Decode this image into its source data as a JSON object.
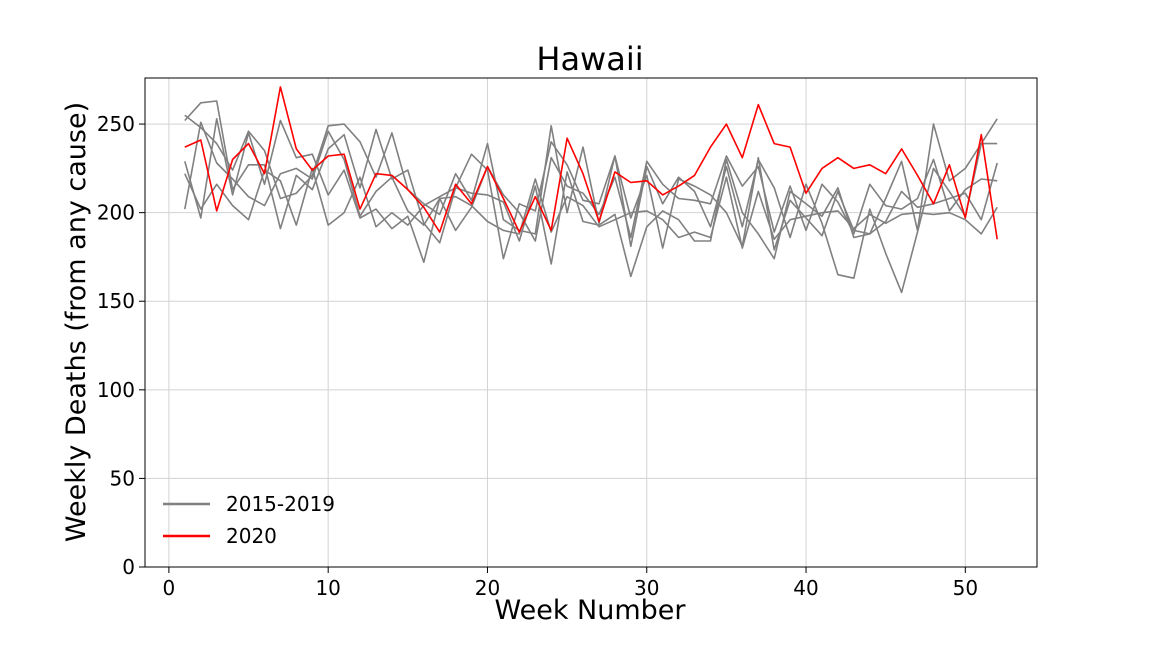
{
  "chart_data": {
    "type": "line",
    "title": "Hawaii",
    "xlabel": "Week Number",
    "ylabel": "Weekly Deaths (from any cause)",
    "xlim": [
      -1.5,
      54.5
    ],
    "ylim": [
      0,
      276
    ],
    "xticks": [
      0,
      10,
      20,
      30,
      40,
      50
    ],
    "yticks": [
      0,
      50,
      100,
      150,
      200,
      250
    ],
    "grid": true,
    "legend_position": "lower-left",
    "legend": [
      {
        "label": "2015-2019",
        "color": "#808080"
      },
      {
        "label": "2020",
        "color": "#ff0000"
      }
    ],
    "x": [
      1,
      2,
      3,
      4,
      5,
      6,
      7,
      8,
      9,
      10,
      11,
      12,
      13,
      14,
      15,
      16,
      17,
      18,
      19,
      20,
      21,
      22,
      23,
      24,
      25,
      26,
      27,
      28,
      29,
      30,
      31,
      32,
      33,
      34,
      35,
      36,
      37,
      38,
      39,
      40,
      41,
      42,
      43,
      44,
      45,
      46,
      47,
      48,
      49,
      50,
      51,
      52
    ],
    "series": [
      {
        "group": "2015-2019",
        "color": "#808080",
        "values": [
          255,
          248,
          239,
          224,
          246,
          235,
          208,
          211,
          221,
          249,
          250,
          240,
          220,
          245,
          213,
          205,
          199,
          222,
          207,
          239,
          196,
          190,
          188,
          249,
          200,
          237,
          194,
          232,
          197,
          221,
          180,
          219,
          215,
          210,
          200,
          181,
          231,
          179,
          207,
          197,
          187,
          212,
          190,
          188,
          208,
          229,
          190,
          250,
          218,
          225,
          239,
          239
        ]
      },
      {
        "group": "2015-2019",
        "color": "#808080",
        "values": [
          252,
          262,
          263,
          213,
          227,
          227,
          191,
          221,
          213,
          236,
          244,
          214,
          247,
          219,
          224,
          194,
          183,
          214,
          233,
          224,
          174,
          205,
          201,
          240,
          227,
          207,
          205,
          232,
          181,
          226,
          205,
          220,
          212,
          192,
          226,
          192,
          230,
          214,
          186,
          216,
          194,
          165,
          163,
          202,
          177,
          155,
          189,
          225,
          212,
          198,
          239,
          253
        ]
      },
      {
        "group": "2015-2019",
        "color": "#808080",
        "values": [
          229,
          197,
          253,
          210,
          245,
          216,
          252,
          231,
          233,
          210,
          224,
          197,
          202,
          191,
          198,
          172,
          208,
          190,
          203,
          226,
          210,
          200,
          184,
          231,
          215,
          211,
          199,
          220,
          186,
          229,
          216,
          208,
          207,
          205,
          232,
          215,
          226,
          189,
          215,
          190,
          216,
          206,
          188,
          216,
          204,
          202,
          208,
          230,
          201,
          213,
          219,
          218
        ]
      },
      {
        "group": "2015-2019",
        "color": "#808080",
        "values": [
          202,
          251,
          228,
          219,
          209,
          204,
          222,
          225,
          219,
          246,
          230,
          198,
          212,
          220,
          201,
          193,
          208,
          209,
          204,
          195,
          190,
          188,
          219,
          189,
          209,
          204,
          192,
          196,
          200,
          201,
          196,
          186,
          189,
          186,
          220,
          180,
          212,
          185,
          196,
          198,
          200,
          201,
          191,
          199,
          194,
          199,
          200,
          199,
          200,
          196,
          188,
          203
        ]
      },
      {
        "group": "2015-2019",
        "color": "#808080",
        "values": [
          222,
          202,
          216,
          204,
          196,
          224,
          218,
          193,
          225,
          193,
          200,
          220,
          192,
          200,
          193,
          204,
          209,
          214,
          211,
          210,
          206,
          184,
          215,
          171,
          223,
          195,
          193,
          199,
          164,
          192,
          201,
          196,
          184,
          184,
          230,
          200,
          188,
          174,
          212,
          205,
          198,
          214,
          186,
          188,
          195,
          212,
          203,
          205,
          208,
          211,
          196,
          228
        ]
      },
      {
        "group": "2020",
        "color": "#ff0000",
        "values": [
          237,
          241,
          201,
          230,
          239,
          222,
          271,
          236,
          224,
          232,
          233,
          202,
          222,
          221,
          213,
          203,
          189,
          216,
          205,
          226,
          208,
          189,
          209,
          190,
          242,
          222,
          195,
          223,
          217,
          218,
          210,
          215,
          221,
          237,
          250,
          231,
          261,
          239,
          237,
          211,
          225,
          231,
          225,
          227,
          222,
          236,
          221,
          205,
          227,
          197,
          244,
          185
        ]
      }
    ]
  }
}
